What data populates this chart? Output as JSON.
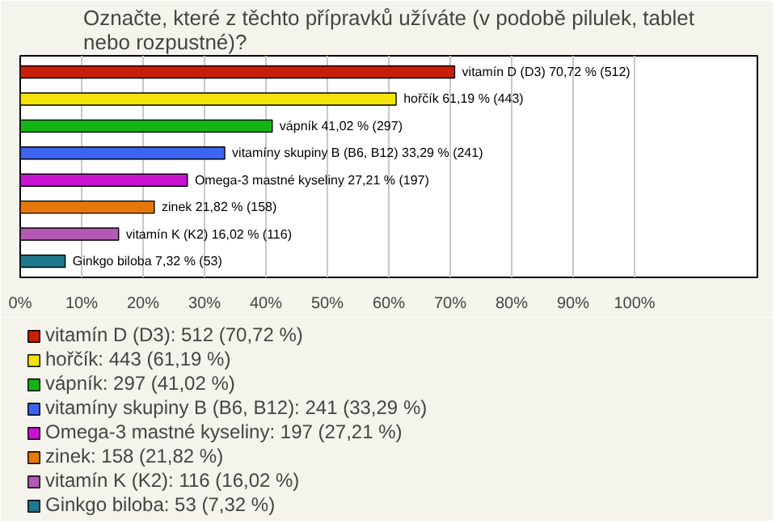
{
  "chart_data": {
    "type": "bar",
    "orientation": "horizontal",
    "title": "Označte, které z těchto přípravků užíváte (v podobě pilulek, tablet nebo rozpustné)?",
    "categories": [
      "vitamín D (D3)",
      "hořčík",
      "vápník",
      "vitamíny skupiny B (B6, B12)",
      "Omega-3 mastné kyseliny",
      "zinek",
      "vitamín K (K2)",
      "Ginkgo biloba"
    ],
    "series": [
      {
        "name": "vitamín D (D3): 512 (70,72 %)",
        "color": "#c81e0a",
        "values": [
          70.72,
          null,
          null,
          null,
          null,
          null,
          null,
          null
        ],
        "value_labels": [
          "70,72 % (512)",
          null,
          null,
          null,
          null,
          null,
          null,
          null
        ]
      },
      {
        "name": "hořčík: 443 (61,19 %)",
        "color": "#f5e10a",
        "values": [
          null,
          61.19,
          null,
          null,
          null,
          null,
          null,
          null
        ],
        "value_labels": [
          null,
          "61,19 % (443)",
          null,
          null,
          null,
          null,
          null,
          null
        ]
      },
      {
        "name": "vápník: 297 (41,02 %)",
        "color": "#14b414",
        "values": [
          null,
          null,
          41.02,
          null,
          null,
          null,
          null,
          null
        ],
        "value_labels": [
          null,
          null,
          "41,02 % (297)",
          null,
          null,
          null,
          null,
          null
        ]
      },
      {
        "name": "vitamíny skupiny B (B6, B12): 241 (33,29 %)",
        "color": "#3c64f0",
        "values": [
          null,
          null,
          null,
          33.29,
          null,
          null,
          null,
          null
        ],
        "value_labels": [
          null,
          null,
          null,
          "33,29 % (241)",
          null,
          null,
          null,
          null
        ]
      },
      {
        "name": "Omega-3 mastné kyseliny: 197 (27,21 %)",
        "color": "#c814d2",
        "values": [
          null,
          null,
          null,
          null,
          27.21,
          null,
          null,
          null
        ],
        "value_labels": [
          null,
          null,
          null,
          null,
          "27,21 % (197)",
          null,
          null,
          null
        ]
      },
      {
        "name": "zinek: 158 (21,82 %)",
        "color": "#e6780a",
        "values": [
          null,
          null,
          null,
          null,
          null,
          21.82,
          null,
          null
        ],
        "value_labels": [
          null,
          null,
          null,
          null,
          null,
          "21,82 % (158)",
          null,
          null
        ]
      },
      {
        "name": "vitamín K (K2): 116 (16,02 %)",
        "color": "#b45ab4",
        "values": [
          null,
          null,
          null,
          null,
          null,
          null,
          16.02,
          null
        ],
        "value_labels": [
          null,
          null,
          null,
          null,
          null,
          null,
          "16,02 % (116)",
          null
        ]
      },
      {
        "name": "Ginkgo biloba: 53 (7,32 %)",
        "color": "#1e788c",
        "values": [
          null,
          null,
          null,
          null,
          null,
          null,
          null,
          7.32
        ],
        "value_labels": [
          null,
          null,
          null,
          null,
          null,
          null,
          null,
          "7,32 % (53)"
        ]
      }
    ],
    "xlim": [
      0,
      120
    ],
    "xticks": [
      {
        "value": 0,
        "label": "0%"
      },
      {
        "value": 10,
        "label": "10%"
      },
      {
        "value": 20,
        "label": "20%"
      },
      {
        "value": 30,
        "label": "30%"
      },
      {
        "value": 40,
        "label": "40%"
      },
      {
        "value": 50,
        "label": "50%"
      },
      {
        "value": 60,
        "label": "60%"
      },
      {
        "value": 70,
        "label": "70%"
      },
      {
        "value": 80,
        "label": "80%"
      },
      {
        "value": 90,
        "label": "90%"
      },
      {
        "value": 100,
        "label": "100%"
      }
    ],
    "grid": "x",
    "legend": "bottom"
  }
}
